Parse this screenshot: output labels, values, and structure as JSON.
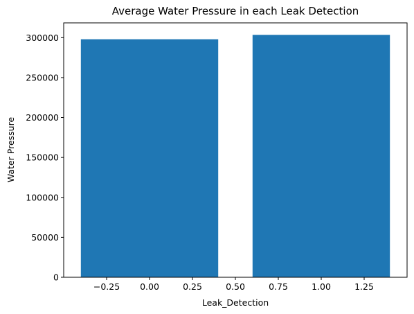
{
  "chart_data": {
    "type": "bar",
    "title": "Average Water Pressure in each Leak Detection",
    "xlabel": "Leak_Detection",
    "ylabel": "Water Pressure",
    "x": [
      0,
      1
    ],
    "values": [
      298000,
      303500
    ],
    "bar_width": 0.8,
    "xlim": [
      -0.5,
      1.5
    ],
    "ylim": [
      0,
      318500
    ],
    "xticks": [
      -0.25,
      0.0,
      0.25,
      0.5,
      0.75,
      1.0,
      1.25
    ],
    "xtick_labels": [
      "−0.25",
      "0.00",
      "0.25",
      "0.50",
      "0.75",
      "1.00",
      "1.25"
    ],
    "yticks": [
      0,
      50000,
      100000,
      150000,
      200000,
      250000,
      300000
    ],
    "ytick_labels": [
      "0",
      "50000",
      "100000",
      "150000",
      "200000",
      "250000",
      "300000"
    ],
    "grid": false,
    "bar_color": "#1f77b4"
  }
}
